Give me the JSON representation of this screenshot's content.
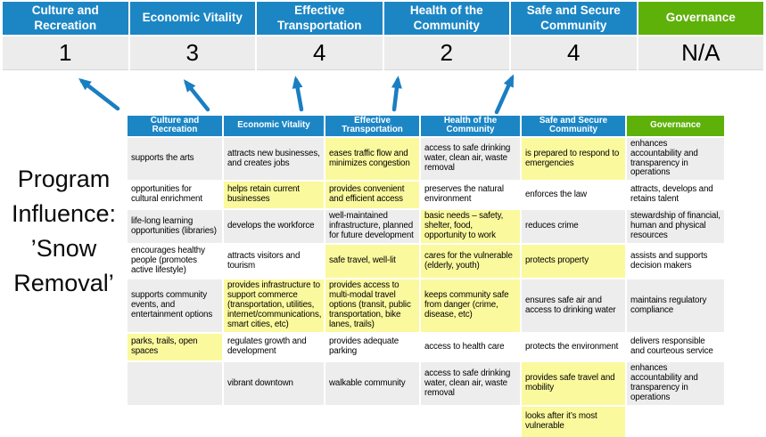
{
  "program_label": "Program Influence: ’Snow Removal’",
  "colors": {
    "header_blue": "#1c86c5",
    "governance_green": "#5db108",
    "highlight_yellow": "#fbf99d",
    "row_gray": "#ededed",
    "score_band_gray": "#ececec",
    "arrow_blue": "#1a7ec2"
  },
  "icons": {
    "arrows": [
      "up-left-arrow",
      "up-left-arrow",
      "up-arrow",
      "up-arrow",
      "up-right-arrow"
    ]
  },
  "scoreboard": {
    "columns": [
      {
        "label": "Culture and Recreation",
        "score": "1",
        "accent": "blue"
      },
      {
        "label": "Economic Vitality",
        "score": "3",
        "accent": "blue"
      },
      {
        "label": "Effective Transportation",
        "score": "4",
        "accent": "blue"
      },
      {
        "label": "Health of the Community",
        "score": "2",
        "accent": "blue"
      },
      {
        "label": "Safe and Secure Community",
        "score": "4",
        "accent": "blue"
      },
      {
        "label": "Governance",
        "score": "N/A",
        "accent": "green"
      }
    ]
  },
  "matrix": {
    "headers": [
      {
        "label": "Culture and Recreation",
        "accent": "blue"
      },
      {
        "label": "Economic Vitality",
        "accent": "blue"
      },
      {
        "label": "Effective Transportation",
        "accent": "blue"
      },
      {
        "label": "Health of the Community",
        "accent": "blue"
      },
      {
        "label": "Safe and Secure Community",
        "accent": "blue"
      },
      {
        "label": "Governance",
        "accent": "green"
      }
    ],
    "rows": [
      {
        "cells": [
          {
            "text": "supports the arts",
            "highlight": false
          },
          {
            "text": "attracts new businesses, and creates jobs",
            "highlight": false
          },
          {
            "text": "eases traffic flow and minimizes congestion",
            "highlight": true
          },
          {
            "text": "access to safe drinking water, clean air, waste removal",
            "highlight": false
          },
          {
            "text": "is prepared to respond to emergencies",
            "highlight": true
          },
          {
            "text": "enhances accountability and transparency in operations",
            "highlight": false
          }
        ]
      },
      {
        "cells": [
          {
            "text": "opportunities for cultural enrichment",
            "highlight": false
          },
          {
            "text": "helps retain current businesses",
            "highlight": true
          },
          {
            "text": "provides convenient and efficient access",
            "highlight": true
          },
          {
            "text": "preserves the natural environment",
            "highlight": false
          },
          {
            "text": "enforces the law",
            "highlight": false
          },
          {
            "text": "attracts, develops and retains talent",
            "highlight": false
          }
        ]
      },
      {
        "cells": [
          {
            "text": "life-long learning opportunities (libraries)",
            "highlight": false
          },
          {
            "text": "develops the workforce",
            "highlight": false
          },
          {
            "text": "well-maintained infrastructure, planned for future development",
            "highlight": false
          },
          {
            "text": "basic needs – safety, shelter, food, opportunity to work",
            "highlight": true
          },
          {
            "text": "reduces crime",
            "highlight": false
          },
          {
            "text": "stewardship of financial, human and physical resources",
            "highlight": false
          }
        ]
      },
      {
        "cells": [
          {
            "text": "encourages healthy people (promotes active lifestyle)",
            "highlight": false
          },
          {
            "text": "attracts visitors and tourism",
            "highlight": false
          },
          {
            "text": "safe travel, well-lit",
            "highlight": true
          },
          {
            "text": "cares for the vulnerable (elderly, youth)",
            "highlight": true
          },
          {
            "text": "protects property",
            "highlight": true
          },
          {
            "text": "assists and supports decision makers",
            "highlight": false
          }
        ]
      },
      {
        "cells": [
          {
            "text": "supports community events, and entertainment options",
            "highlight": false
          },
          {
            "text": "provides infrastructure to support commerce (transportation, utilities, internet/communications, smart cities, etc)",
            "highlight": true
          },
          {
            "text": "provides access to multi-modal travel options (transit, public transportation, bike lanes, trails)",
            "highlight": true
          },
          {
            "text": "keeps community safe from danger (crime, disease, etc)",
            "highlight": true
          },
          {
            "text": "ensures safe air and access to drinking water",
            "highlight": false
          },
          {
            "text": "maintains regulatory compliance",
            "highlight": false
          }
        ]
      },
      {
        "cells": [
          {
            "text": "parks, trails, open spaces",
            "highlight": true
          },
          {
            "text": "regulates growth and development",
            "highlight": false
          },
          {
            "text": "provides adequate parking",
            "highlight": false
          },
          {
            "text": "access to health care",
            "highlight": false
          },
          {
            "text": "protects the environment",
            "highlight": false
          },
          {
            "text": "delivers responsible and courteous service",
            "highlight": false
          }
        ]
      },
      {
        "cells": [
          {
            "text": "",
            "highlight": false
          },
          {
            "text": "vibrant downtown",
            "highlight": false
          },
          {
            "text": "walkable community",
            "highlight": false
          },
          {
            "text": "access to safe drinking water, clean air, waste removal",
            "highlight": false
          },
          {
            "text": "provides safe travel and mobility",
            "highlight": true
          },
          {
            "text": "enhances accountability and transparency in operations",
            "highlight": false
          }
        ]
      },
      {
        "cells": [
          {
            "text": "",
            "highlight": false
          },
          {
            "text": "",
            "highlight": false
          },
          {
            "text": "",
            "highlight": false
          },
          {
            "text": "",
            "highlight": false
          },
          {
            "text": "looks after it’s most vulnerable",
            "highlight": true
          },
          {
            "text": "",
            "highlight": false
          }
        ]
      }
    ]
  }
}
